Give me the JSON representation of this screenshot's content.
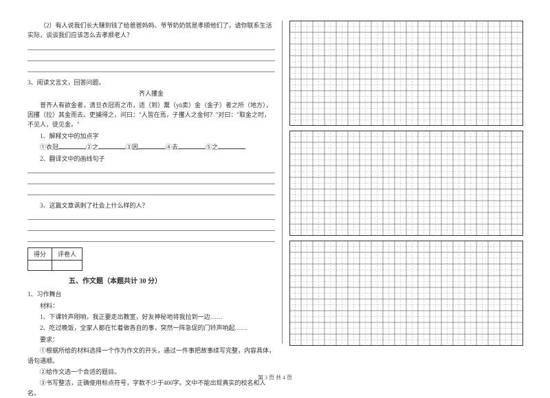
{
  "q2_text": "（2）有人说我们长大赚到钱了给爸爸妈妈、爷爷奶奶就是孝顺他们了，请你联系生活实际，谈谈我们应该怎么去孝顺老人？",
  "q3_intro": "3、阅读文言文，回答问题。",
  "q3_title": "齐人攫金",
  "q3_passage1": "昔齐人有欲金者，清旦衣冠而之市，适（到）鬻（yū卖）金（金子）者之所（地方），因攫（拉）其金而去。吏捕得之，问曰：\"人皆在焉，子攫人之金何？\"对曰：\"取金之时，不见人，徒见金。\"",
  "q3_sub1": "1、解释文中的加点字",
  "q3_sub1_items": "①衣冠________②之________③因________④去________⑤之________",
  "q3_sub2": "2、翻译文中的画线句子",
  "q3_sub3": "3、这篇文章讽刺了社会上什么样的人？",
  "score_label1": "得分",
  "score_label2": "评卷人",
  "section5_title": "五、作文题（本题共计 30 分）",
  "essay_intro": "1、习作舞台",
  "essay_material_label": "材料：",
  "essay_mat1": "1、下课铃声刚响，我正要走出教室，好友神秘地将我拉到一边……",
  "essay_mat2": "2、吃过晚饭，全家人都在忙着做各自的事，突然一阵急促的门铃声响起……",
  "essay_req_label": "要求：",
  "essay_req1": "①根据所给的材料选择一个作为作文的开头，通过一件事把故事续写完整，内容具体，语句通顺。",
  "essay_req2": "②给作文选一个合适的题目。",
  "essay_req3": "③书写整洁，正确使用标点符号，字数不少于400字。文中不能出现真实的校名和人名。",
  "footer_text": "第 3 页 共 4 页",
  "grid": {
    "cols": 20,
    "rows": 9,
    "cell_size": 17,
    "border_color": "#333333",
    "dash_color": "#888888"
  }
}
